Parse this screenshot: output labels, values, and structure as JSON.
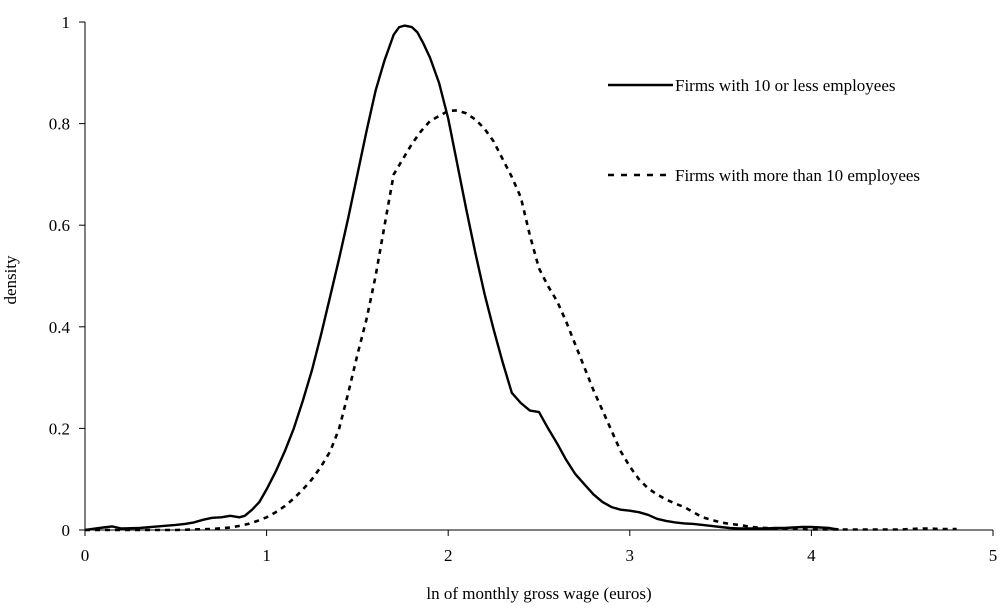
{
  "chart_data": {
    "type": "line",
    "title": "",
    "xlabel": "ln of monthly gross wage (euros)",
    "ylabel": "density",
    "xlim": [
      0,
      5
    ],
    "ylim": [
      0,
      1
    ],
    "xticks": [
      "0",
      "1",
      "2",
      "3",
      "4",
      "5"
    ],
    "yticks": [
      "0",
      "0.2",
      "0.4",
      "0.6",
      "0.8",
      "1"
    ],
    "grid": false,
    "legend_position": "top-right",
    "series": [
      {
        "name": "Firms with 10 or less employees",
        "style": "solid",
        "color": "#000000",
        "x": [
          0.0,
          0.1,
          0.15,
          0.2,
          0.3,
          0.4,
          0.5,
          0.55,
          0.6,
          0.65,
          0.7,
          0.75,
          0.8,
          0.85,
          0.88,
          0.92,
          0.96,
          1.0,
          1.05,
          1.1,
          1.15,
          1.2,
          1.25,
          1.3,
          1.35,
          1.4,
          1.45,
          1.5,
          1.55,
          1.6,
          1.65,
          1.7,
          1.73,
          1.76,
          1.8,
          1.83,
          1.86,
          1.9,
          1.95,
          2.0,
          2.05,
          2.1,
          2.15,
          2.2,
          2.25,
          2.3,
          2.35,
          2.4,
          2.45,
          2.5,
          2.55,
          2.6,
          2.65,
          2.7,
          2.75,
          2.8,
          2.85,
          2.9,
          2.95,
          3.0,
          3.05,
          3.1,
          3.15,
          3.2,
          3.25,
          3.3,
          3.35,
          3.4,
          3.45,
          3.5,
          3.55,
          3.6,
          3.65,
          3.7,
          3.75,
          3.8,
          3.85,
          3.9,
          3.95,
          4.0,
          4.05,
          4.1,
          4.13,
          4.15
        ],
        "y": [
          0.0,
          0.005,
          0.007,
          0.003,
          0.004,
          0.007,
          0.01,
          0.012,
          0.015,
          0.02,
          0.024,
          0.025,
          0.028,
          0.025,
          0.028,
          0.04,
          0.055,
          0.08,
          0.115,
          0.155,
          0.2,
          0.255,
          0.315,
          0.385,
          0.46,
          0.535,
          0.615,
          0.7,
          0.785,
          0.865,
          0.925,
          0.975,
          0.99,
          0.993,
          0.99,
          0.98,
          0.96,
          0.93,
          0.88,
          0.81,
          0.72,
          0.63,
          0.545,
          0.465,
          0.395,
          0.33,
          0.27,
          0.25,
          0.235,
          0.232,
          0.2,
          0.17,
          0.138,
          0.11,
          0.09,
          0.07,
          0.055,
          0.045,
          0.04,
          0.038,
          0.035,
          0.03,
          0.022,
          0.018,
          0.015,
          0.013,
          0.012,
          0.01,
          0.008,
          0.006,
          0.004,
          0.003,
          0.003,
          0.003,
          0.003,
          0.004,
          0.004,
          0.005,
          0.006,
          0.006,
          0.005,
          0.004,
          0.002,
          0.001
        ]
      },
      {
        "name": "Firms with more than 10 employees",
        "style": "dashed",
        "color": "#000000",
        "x": [
          0.0,
          0.2,
          0.4,
          0.5,
          0.6,
          0.7,
          0.8,
          0.85,
          0.9,
          0.95,
          1.0,
          1.05,
          1.1,
          1.15,
          1.2,
          1.25,
          1.3,
          1.35,
          1.4,
          1.45,
          1.5,
          1.55,
          1.6,
          1.65,
          1.7,
          1.75,
          1.8,
          1.85,
          1.9,
          1.95,
          2.0,
          2.05,
          2.1,
          2.15,
          2.2,
          2.25,
          2.3,
          2.35,
          2.4,
          2.45,
          2.5,
          2.55,
          2.6,
          2.65,
          2.7,
          2.75,
          2.8,
          2.85,
          2.9,
          2.95,
          3.0,
          3.05,
          3.1,
          3.15,
          3.2,
          3.25,
          3.3,
          3.35,
          3.4,
          3.45,
          3.5,
          3.55,
          3.6,
          3.65,
          3.7,
          3.75,
          3.8,
          3.9,
          4.0,
          4.1,
          4.2,
          4.3,
          4.4,
          4.5,
          4.6,
          4.65,
          4.7,
          4.75,
          4.8
        ],
        "y": [
          0.0,
          0.0,
          0.0,
          0.0,
          0.001,
          0.002,
          0.005,
          0.008,
          0.012,
          0.018,
          0.025,
          0.035,
          0.047,
          0.062,
          0.08,
          0.1,
          0.125,
          0.155,
          0.2,
          0.27,
          0.345,
          0.415,
          0.5,
          0.6,
          0.7,
          0.73,
          0.76,
          0.785,
          0.805,
          0.815,
          0.825,
          0.826,
          0.82,
          0.808,
          0.79,
          0.765,
          0.73,
          0.695,
          0.655,
          0.58,
          0.515,
          0.48,
          0.45,
          0.41,
          0.365,
          0.32,
          0.275,
          0.235,
          0.195,
          0.155,
          0.125,
          0.1,
          0.082,
          0.07,
          0.06,
          0.052,
          0.045,
          0.035,
          0.025,
          0.02,
          0.015,
          0.012,
          0.01,
          0.007,
          0.005,
          0.004,
          0.003,
          0.002,
          0.001,
          0.001,
          0.001,
          0.001,
          0.001,
          0.001,
          0.003,
          0.003,
          0.002,
          0.002,
          0.002
        ]
      }
    ]
  }
}
